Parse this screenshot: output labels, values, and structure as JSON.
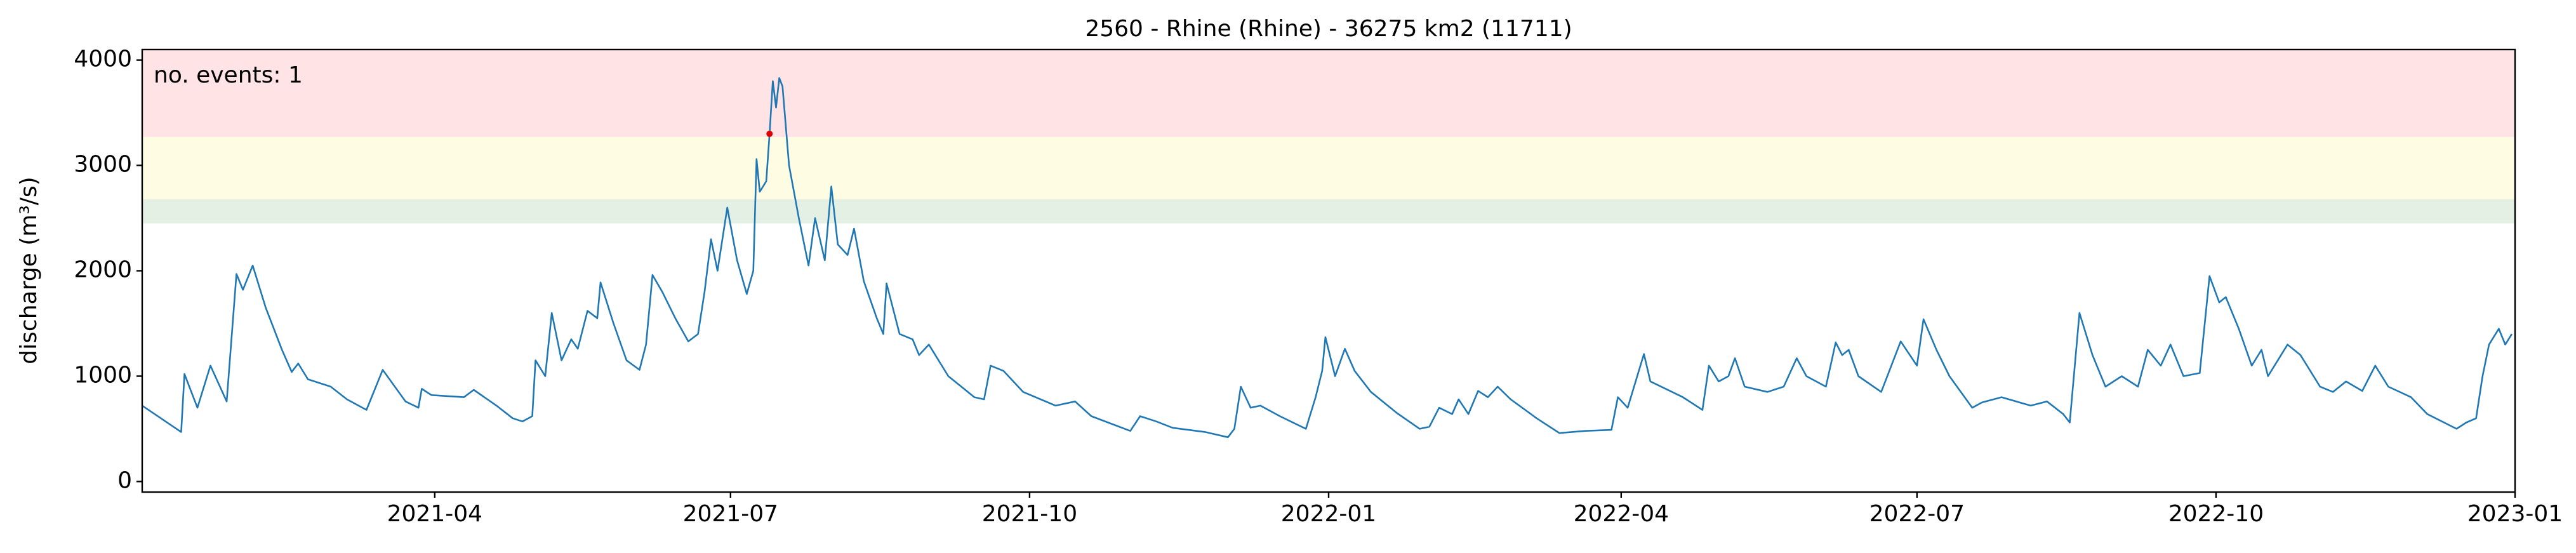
{
  "chart_data": {
    "type": "line",
    "title": "2560 - Rhine (Rhine) - 36275 km2 (11711)",
    "y_label": "discharge (m³/s)",
    "annotation": "no. events: 1",
    "annotation_color": "#e00000",
    "xlim": [
      "2021-01-01",
      "2023-01-01"
    ],
    "xticks": [
      "2021-04",
      "2021-07",
      "2021-10",
      "2022-01",
      "2022-04",
      "2022-07",
      "2022-10",
      "2023-01"
    ],
    "ylim": [
      -100,
      4100
    ],
    "yticks": [
      0,
      1000,
      2000,
      3000,
      4000
    ],
    "grid": false,
    "bands": [
      {
        "from": 2450,
        "to": 2680,
        "color": "#e3f0e3"
      },
      {
        "from": 2680,
        "to": 3270,
        "color": "#fefde3"
      },
      {
        "from": 3270,
        "to": 4100,
        "color": "#ffe3e5"
      }
    ],
    "series": [
      {
        "color": "#1f77b4",
        "x": [
          "2021-01-01",
          "2021-01-13",
          "2021-01-14",
          "2021-01-18",
          "2021-01-22",
          "2021-01-27",
          "2021-01-30",
          "2021-02-01",
          "2021-02-04",
          "2021-02-08",
          "2021-02-13",
          "2021-02-16",
          "2021-02-18",
          "2021-02-21",
          "2021-02-28",
          "2021-03-05",
          "2021-03-11",
          "2021-03-16",
          "2021-03-23",
          "2021-03-27",
          "2021-03-28",
          "2021-03-31",
          "2021-04-10",
          "2021-04-13",
          "2021-04-20",
          "2021-04-25",
          "2021-04-28",
          "2021-05-01",
          "2021-05-02",
          "2021-05-05",
          "2021-05-07",
          "2021-05-10",
          "2021-05-13",
          "2021-05-15",
          "2021-05-18",
          "2021-05-21",
          "2021-05-22",
          "2021-05-26",
          "2021-05-30",
          "2021-06-03",
          "2021-06-05",
          "2021-06-07",
          "2021-06-10",
          "2021-06-14",
          "2021-06-18",
          "2021-06-21",
          "2021-06-23",
          "2021-06-25",
          "2021-06-27",
          "2021-06-30",
          "2021-07-03",
          "2021-07-06",
          "2021-07-08",
          "2021-07-09",
          "2021-07-10",
          "2021-07-12",
          "2021-07-13",
          "2021-07-14",
          "2021-07-15",
          "2021-07-16",
          "2021-07-17",
          "2021-07-19",
          "2021-07-22",
          "2021-07-25",
          "2021-07-27",
          "2021-07-30",
          "2021-08-01",
          "2021-08-03",
          "2021-08-06",
          "2021-08-08",
          "2021-08-11",
          "2021-08-15",
          "2021-08-17",
          "2021-08-18",
          "2021-08-22",
          "2021-08-26",
          "2021-08-28",
          "2021-08-31",
          "2021-09-06",
          "2021-09-14",
          "2021-09-17",
          "2021-09-19",
          "2021-09-23",
          "2021-09-29",
          "2021-10-09",
          "2021-10-15",
          "2021-10-20",
          "2021-10-26",
          "2021-11-01",
          "2021-11-04",
          "2021-11-09",
          "2021-11-14",
          "2021-11-24",
          "2021-12-01",
          "2021-12-03",
          "2021-12-05",
          "2021-12-08",
          "2021-12-11",
          "2021-12-17",
          "2021-12-25",
          "2021-12-28",
          "2021-12-30",
          "2021-12-31",
          "2022-01-03",
          "2022-01-06",
          "2022-01-09",
          "2022-01-14",
          "2022-01-22",
          "2022-01-29",
          "2022-02-01",
          "2022-02-04",
          "2022-02-08",
          "2022-02-10",
          "2022-02-13",
          "2022-02-16",
          "2022-02-19",
          "2022-02-22",
          "2022-02-26",
          "2022-03-06",
          "2022-03-13",
          "2022-03-21",
          "2022-03-29",
          "2022-03-31",
          "2022-04-03",
          "2022-04-08",
          "2022-04-10",
          "2022-04-20",
          "2022-04-26",
          "2022-04-28",
          "2022-05-01",
          "2022-05-04",
          "2022-05-06",
          "2022-05-09",
          "2022-05-16",
          "2022-05-21",
          "2022-05-25",
          "2022-05-28",
          "2022-06-03",
          "2022-06-06",
          "2022-06-08",
          "2022-06-10",
          "2022-06-13",
          "2022-06-20",
          "2022-06-26",
          "2022-07-01",
          "2022-07-03",
          "2022-07-07",
          "2022-07-11",
          "2022-07-18",
          "2022-07-21",
          "2022-07-27",
          "2022-08-05",
          "2022-08-10",
          "2022-08-15",
          "2022-08-17",
          "2022-08-20",
          "2022-08-24",
          "2022-08-28",
          "2022-09-02",
          "2022-09-07",
          "2022-09-10",
          "2022-09-14",
          "2022-09-17",
          "2022-09-21",
          "2022-09-26",
          "2022-09-29",
          "2022-10-02",
          "2022-10-04",
          "2022-10-08",
          "2022-10-12",
          "2022-10-15",
          "2022-10-17",
          "2022-10-23",
          "2022-10-27",
          "2022-11-02",
          "2022-11-06",
          "2022-11-10",
          "2022-11-15",
          "2022-11-19",
          "2022-11-23",
          "2022-11-30",
          "2022-12-05",
          "2022-12-14",
          "2022-12-17",
          "2022-12-20",
          "2022-12-22",
          "2022-12-24",
          "2022-12-27",
          "2022-12-29",
          "2022-12-31"
        ],
        "values": [
          720,
          470,
          1020,
          700,
          1100,
          760,
          1970,
          1820,
          2050,
          1650,
          1250,
          1040,
          1120,
          970,
          900,
          780,
          680,
          1060,
          760,
          700,
          880,
          820,
          800,
          870,
          720,
          600,
          570,
          620,
          1150,
          1000,
          1600,
          1150,
          1350,
          1260,
          1620,
          1550,
          1890,
          1500,
          1150,
          1060,
          1300,
          1960,
          1800,
          1550,
          1330,
          1400,
          1800,
          2300,
          2000,
          2600,
          2100,
          1780,
          2000,
          3060,
          2750,
          2850,
          3300,
          3800,
          3550,
          3830,
          3750,
          3000,
          2500,
          2050,
          2500,
          2100,
          2800,
          2250,
          2150,
          2400,
          1900,
          1550,
          1400,
          1880,
          1400,
          1350,
          1200,
          1300,
          1000,
          800,
          780,
          1100,
          1050,
          850,
          720,
          760,
          620,
          550,
          480,
          620,
          570,
          510,
          470,
          420,
          500,
          900,
          700,
          720,
          620,
          500,
          800,
          1050,
          1370,
          1000,
          1260,
          1050,
          850,
          650,
          500,
          520,
          700,
          640,
          780,
          640,
          860,
          800,
          900,
          780,
          600,
          460,
          480,
          490,
          800,
          700,
          1210,
          950,
          800,
          680,
          1100,
          950,
          1000,
          1170,
          900,
          850,
          900,
          1170,
          1000,
          900,
          1320,
          1200,
          1250,
          1000,
          850,
          1330,
          1100,
          1540,
          1250,
          1000,
          700,
          750,
          800,
          720,
          760,
          640,
          560,
          1600,
          1200,
          900,
          1000,
          900,
          1250,
          1100,
          1300,
          1000,
          1030,
          1950,
          1700,
          1750,
          1450,
          1100,
          1250,
          1000,
          1300,
          1200,
          900,
          850,
          950,
          860,
          1100,
          900,
          800,
          640,
          500,
          560,
          600,
          1000,
          1300,
          1450,
          1300,
          1400
        ]
      }
    ],
    "events": {
      "color": "#e00000",
      "x": [
        "2021-07-13"
      ],
      "values": [
        3300
      ]
    }
  }
}
